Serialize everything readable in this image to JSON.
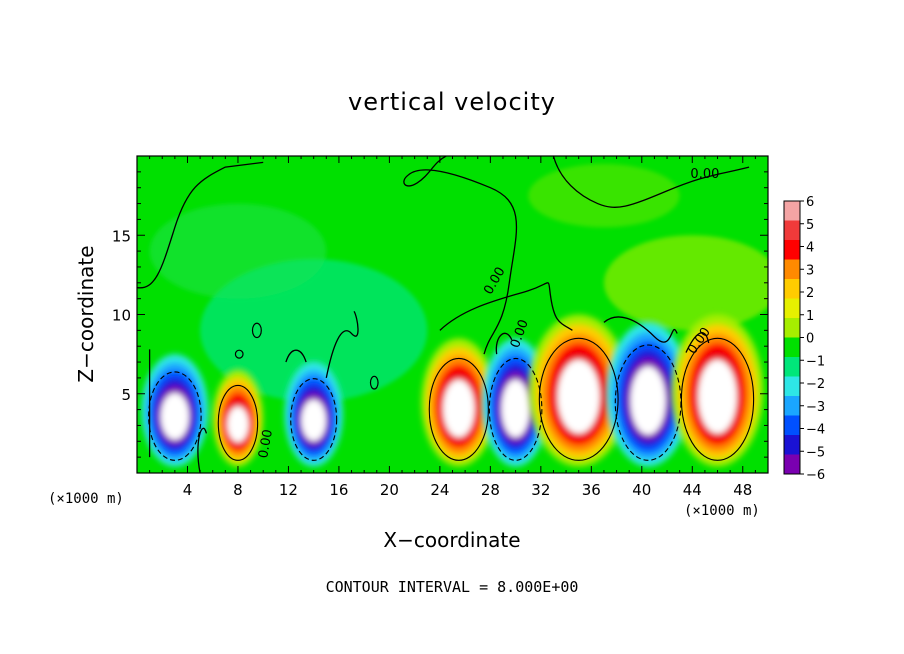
{
  "chart_data": {
    "type": "heatmap",
    "title": "vertical velocity",
    "xlabel": "X−coordinate",
    "ylabel": "Z−coordinate",
    "x_unit_label": "(×1000 m)",
    "x_unit_label_repeat": "(×1000 m)",
    "footer": "CONTOUR INTERVAL = 8.000E+00",
    "xlim": [
      0,
      50
    ],
    "ylim": [
      0,
      20
    ],
    "x_ticks": [
      4,
      8,
      12,
      16,
      20,
      24,
      28,
      32,
      36,
      40,
      44,
      48
    ],
    "x_tick_labels": [
      "4",
      "8",
      "12",
      "16",
      "20",
      "24",
      "28",
      "32",
      "36",
      "40",
      "44",
      "48"
    ],
    "y_ticks": [
      5,
      10,
      15
    ],
    "y_tick_labels": [
      "5",
      "10",
      "15"
    ],
    "colorbar": {
      "range": [
        -6,
        6
      ],
      "tick_labels": [
        "6",
        "5",
        "4",
        "3",
        "2",
        "1",
        "0",
        "−1",
        "−2",
        "−3",
        "−4",
        "−5",
        "−6"
      ],
      "colors": [
        "#f4a4a4",
        "#f03a3a",
        "#ff0000",
        "#ff8a00",
        "#ffcc00",
        "#e6f000",
        "#a6ee00",
        "#00e000",
        "#00e67a",
        "#2ee6e6",
        "#1aa6ff",
        "#0050ff",
        "#1a12d4",
        "#7a00b0"
      ]
    },
    "contour_labels": [
      "0.00",
      "0.00",
      "0.00",
      "0.00",
      "0.00"
    ],
    "cells": [
      {
        "x": 3,
        "sign": "down",
        "z_top": 7.5,
        "strength": 8
      },
      {
        "x": 8,
        "sign": "up",
        "z_top": 6.5,
        "strength": 6
      },
      {
        "x": 14,
        "sign": "down",
        "z_top": 7.0,
        "strength": 7
      },
      {
        "x": 25.5,
        "sign": "up",
        "z_top": 8.5,
        "strength": 9
      },
      {
        "x": 30,
        "sign": "down",
        "z_top": 8.5,
        "strength": 8
      },
      {
        "x": 35,
        "sign": "up",
        "z_top": 10.0,
        "strength": 12
      },
      {
        "x": 40.5,
        "sign": "down",
        "z_top": 9.5,
        "strength": 10
      },
      {
        "x": 46,
        "sign": "up",
        "z_top": 10.0,
        "strength": 11
      }
    ]
  }
}
